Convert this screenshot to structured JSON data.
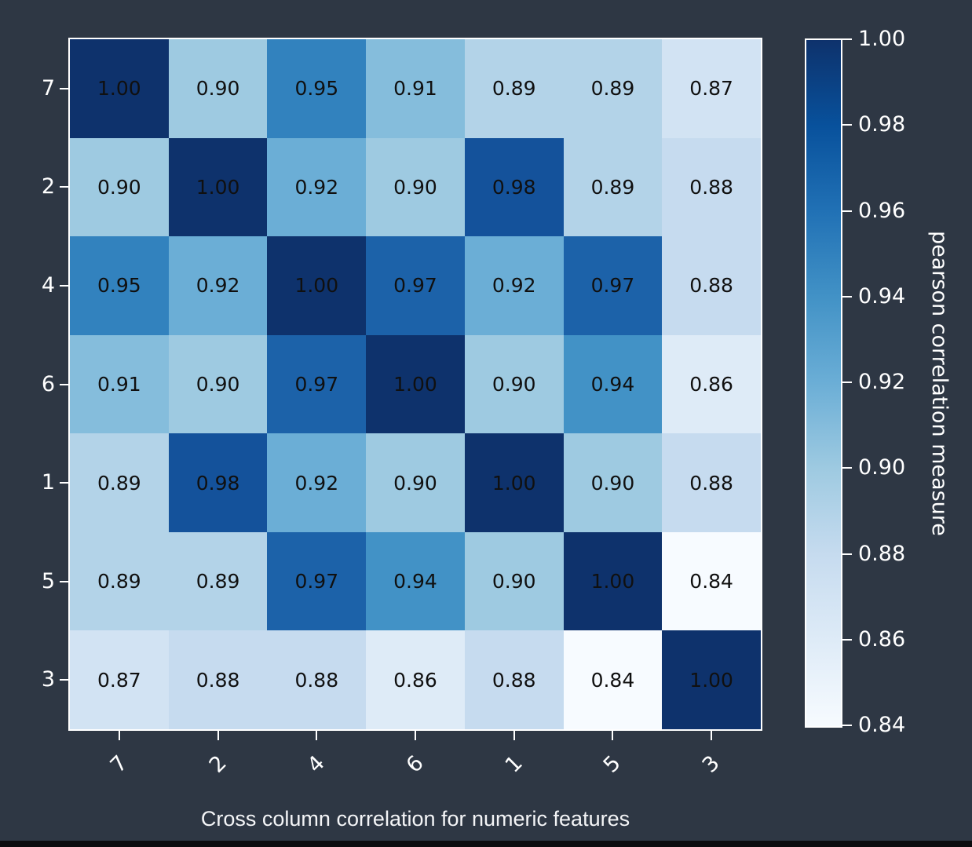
{
  "figure": {
    "background_color": "#2e3744",
    "text_color": "#ffffff",
    "annotation_color": "#101010",
    "spine_color": "#ffffff",
    "bottom_strip_color": "#0b0c0f",
    "title": "Cross column correlation for numeric features"
  },
  "chart_data": {
    "type": "heatmap",
    "title": "Cross column correlation for numeric features",
    "x_tick_labels": [
      "7",
      "2",
      "4",
      "6",
      "1",
      "5",
      "3"
    ],
    "y_tick_labels": [
      "7",
      "2",
      "4",
      "6",
      "1",
      "5",
      "3"
    ],
    "matrix": [
      [
        1.0,
        0.9,
        0.95,
        0.91,
        0.89,
        0.89,
        0.87
      ],
      [
        0.9,
        1.0,
        0.92,
        0.9,
        0.98,
        0.89,
        0.88
      ],
      [
        0.95,
        0.92,
        1.0,
        0.97,
        0.92,
        0.97,
        0.88
      ],
      [
        0.91,
        0.9,
        0.97,
        1.0,
        0.9,
        0.94,
        0.86
      ],
      [
        0.89,
        0.98,
        0.92,
        0.9,
        1.0,
        0.9,
        0.88
      ],
      [
        0.89,
        0.89,
        0.97,
        0.94,
        0.9,
        1.0,
        0.84
      ],
      [
        0.87,
        0.88,
        0.88,
        0.86,
        0.88,
        0.84,
        1.0
      ]
    ],
    "value_format": "2-decimals",
    "colorbar": {
      "label": "pearson correlation measure",
      "tick_labels": [
        "1.00",
        "0.98",
        "0.96",
        "0.94",
        "0.92",
        "0.90",
        "0.88",
        "0.86",
        "0.84"
      ],
      "vmin": 0.84,
      "vmax": 1.0,
      "colormap_name": "Blues",
      "gradient_stops_bottom_to_top": [
        "#f7fbff",
        "#deebf7",
        "#c6dbef",
        "#9ecae1",
        "#6baed6",
        "#4292c6",
        "#2171b5",
        "#08519c",
        "#0e326c"
      ]
    },
    "value_colors": {
      "1.00": "#0e326c",
      "0.98": "#14529b",
      "0.97": "#1c62a9",
      "0.95": "#3282be",
      "0.94": "#4292c6",
      "0.92": "#6baed6",
      "0.91": "#85bddc",
      "0.90": "#9ecae1",
      "0.89": "#b3d3e8",
      "0.88": "#c6dbef",
      "0.87": "#d2e3f3",
      "0.86": "#deebf7",
      "0.84": "#f7fbff"
    }
  }
}
